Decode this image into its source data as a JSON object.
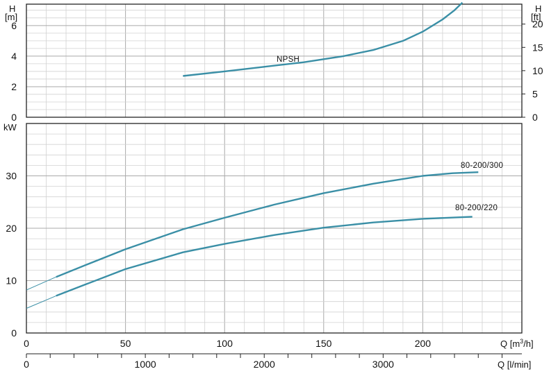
{
  "colors": {
    "curve": "#3a8fa6",
    "grid_major": "#a9a9a9",
    "grid_minor": "#d2d2d2",
    "frame": "#222222"
  },
  "chart_data": [
    {
      "type": "line",
      "title": "",
      "ylabel_left": [
        "H",
        "[m]"
      ],
      "ylabel_right": [
        "H",
        "[ft]"
      ],
      "x_unit": "m³/h",
      "xlim": [
        0,
        250
      ],
      "ylim": [
        0,
        7.4
      ],
      "y_ticks": [
        0,
        2,
        4,
        6
      ],
      "y_ticks_right": [
        0,
        5,
        10,
        15,
        20
      ],
      "grid": true,
      "series": [
        {
          "name": "NPSH",
          "x": [
            79,
            100,
            120,
            140,
            160,
            175,
            190,
            200,
            210,
            216,
            220
          ],
          "y": [
            2.7,
            3.0,
            3.3,
            3.6,
            4.0,
            4.4,
            5.0,
            5.6,
            6.4,
            7.0,
            7.5
          ]
        }
      ]
    },
    {
      "type": "line",
      "title": "",
      "ylabel": "kW",
      "xlabel": "Q [m³/h]",
      "xlabel2": "Q [l/min]",
      "xlim": [
        0,
        250
      ],
      "ylim": [
        0,
        40
      ],
      "x_ticks": [
        0,
        50,
        100,
        150,
        200
      ],
      "x2_ticks": [
        0,
        1000,
        2000,
        3000
      ],
      "y_ticks": [
        0,
        10,
        20,
        30
      ],
      "grid": true,
      "series": [
        {
          "name": "80-200/300",
          "x": [
            0,
            15,
            30,
            50,
            79,
            100,
            125,
            150,
            175,
            200,
            215,
            228
          ],
          "y": [
            8.2,
            10.7,
            13.0,
            16.0,
            19.8,
            22.0,
            24.5,
            26.7,
            28.5,
            30.0,
            30.5,
            30.7
          ]
        },
        {
          "name": "80-200/220",
          "x": [
            0,
            15,
            30,
            50,
            79,
            100,
            125,
            150,
            175,
            200,
            225
          ],
          "y": [
            4.7,
            7.1,
            9.3,
            12.2,
            15.4,
            17.0,
            18.7,
            20.1,
            21.1,
            21.8,
            22.2
          ]
        }
      ]
    }
  ]
}
